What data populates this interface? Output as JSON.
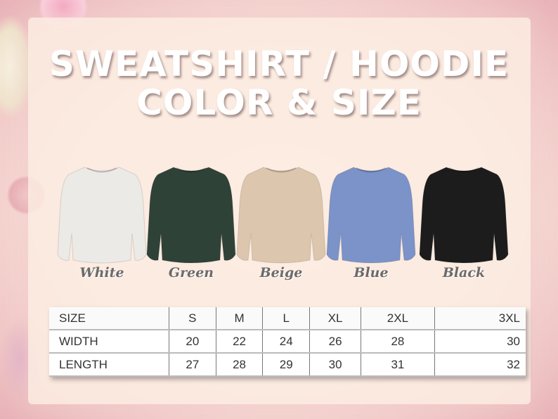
{
  "title": {
    "line1": "SWEATSHIRT / HOODIE",
    "line2": "COLOR & SIZE"
  },
  "colors": [
    {
      "name": "White",
      "hex": "#eceae6"
    },
    {
      "name": "Green",
      "hex": "#2f4238"
    },
    {
      "name": "Beige",
      "hex": "#dcc6ad"
    },
    {
      "name": "Blue",
      "hex": "#7b93c8"
    },
    {
      "name": "Black",
      "hex": "#1c1c1c"
    }
  ],
  "size_table": {
    "header": [
      "SIZE",
      "S",
      "M",
      "L",
      "XL",
      "2XL",
      "3XL"
    ],
    "rows": [
      [
        "WIDTH",
        "20",
        "22",
        "24",
        "26",
        "28",
        "30"
      ],
      [
        "LENGTH",
        "27",
        "28",
        "29",
        "30",
        "31",
        "32"
      ]
    ]
  }
}
